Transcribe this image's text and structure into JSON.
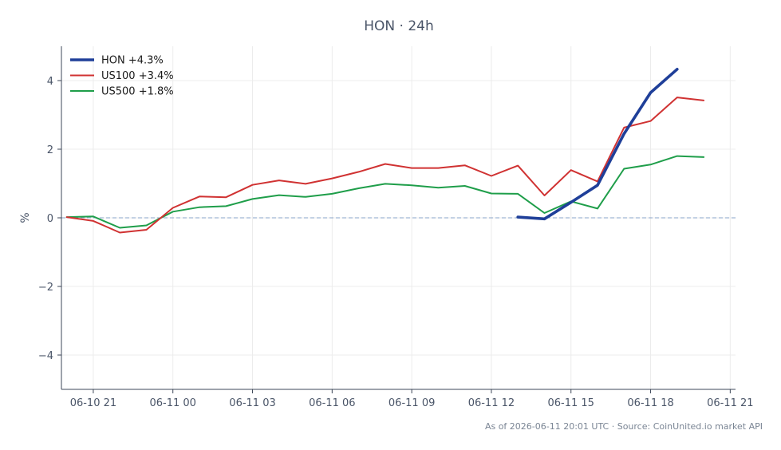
{
  "chart_data": {
    "type": "line",
    "title": "HON · 24h",
    "xlabel": "",
    "ylabel": "%",
    "x_ticks": [
      "06-10 21",
      "06-11 00",
      "06-11 03",
      "06-11 06",
      "06-11 09",
      "06-11 12",
      "06-11 15",
      "06-11 18",
      "06-11 21"
    ],
    "x_tick_hours": [
      0,
      3,
      6,
      9,
      12,
      15,
      18,
      21,
      24
    ],
    "y_ticks": [
      "−4",
      "−2",
      "0",
      "2",
      "4"
    ],
    "y_tick_values": [
      -4,
      -2,
      0,
      2,
      4
    ],
    "xlim": [
      -1.2,
      24.2
    ],
    "ylim": [
      -5,
      5
    ],
    "grid": true,
    "zero_line": 0,
    "legend_position": "top-left",
    "series": [
      {
        "name": "HON +4.3%",
        "color": "#1f3f99",
        "width": 3.6,
        "x": [
          16,
          17,
          18,
          19,
          20,
          21,
          22
        ],
        "y": [
          0.02,
          -0.03,
          0.45,
          0.95,
          2.45,
          3.65,
          4.33
        ]
      },
      {
        "name": "US100 +3.4%",
        "color": "#d03232",
        "width": 2,
        "x": [
          -1,
          0,
          1,
          2,
          3,
          4,
          5,
          6,
          7,
          8,
          9,
          10,
          11,
          12,
          13,
          14,
          15,
          16,
          17,
          18,
          19,
          20,
          21,
          22,
          23
        ],
        "y": [
          0.02,
          -0.09,
          -0.43,
          -0.35,
          0.29,
          0.62,
          0.6,
          0.96,
          1.09,
          0.99,
          1.15,
          1.34,
          1.57,
          1.45,
          1.45,
          1.53,
          1.22,
          1.52,
          0.65,
          1.39,
          1.06,
          2.63,
          2.82,
          3.51,
          3.42
        ]
      },
      {
        "name": "US500 +1.8%",
        "color": "#1f9e4a",
        "width": 2,
        "x": [
          -1,
          0,
          1,
          2,
          3,
          4,
          5,
          6,
          7,
          8,
          9,
          10,
          11,
          12,
          13,
          14,
          15,
          16,
          17,
          18,
          19,
          20,
          21,
          22,
          23
        ],
        "y": [
          0.02,
          0.04,
          -0.29,
          -0.22,
          0.18,
          0.31,
          0.34,
          0.55,
          0.66,
          0.61,
          0.7,
          0.86,
          0.99,
          0.95,
          0.88,
          0.93,
          0.71,
          0.7,
          0.14,
          0.48,
          0.27,
          1.43,
          1.55,
          1.8,
          1.77
        ]
      }
    ],
    "annotation": "As of 2026-06-11 20:01 UTC · Source: CoinUnited.io market API"
  }
}
